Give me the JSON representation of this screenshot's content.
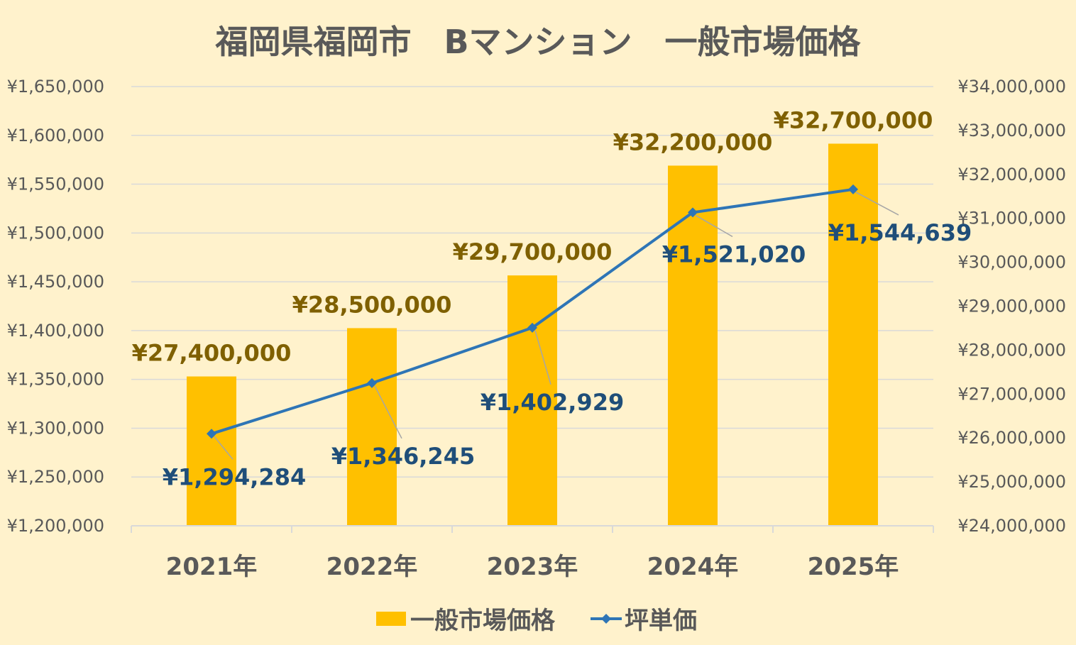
{
  "chart_data": {
    "type": "bar",
    "title": "福岡県福岡市　Bマンション　一般市場価格",
    "categories": [
      "2021年",
      "2022年",
      "2023年",
      "2024年",
      "2025年"
    ],
    "series": [
      {
        "name": "一般市場価格",
        "type": "bar",
        "axis": "right",
        "values": [
          27400000,
          28500000,
          29700000,
          32200000,
          32700000
        ],
        "labels": [
          "¥27,400,000",
          "¥28,500,000",
          "¥29,700,000",
          "¥32,200,000",
          "¥32,700,000"
        ]
      },
      {
        "name": "坪単価",
        "type": "line",
        "axis": "left",
        "values": [
          1294284,
          1346245,
          1402929,
          1521020,
          1544639
        ],
        "labels": [
          "¥1,294,284",
          "¥1,346,245",
          "¥1,402,929",
          "¥1,521,020",
          "¥1,544,639"
        ]
      }
    ],
    "y_left": {
      "min": 1200000,
      "max": 1650000,
      "step": 50000,
      "ticks": [
        "¥1,200,000",
        "¥1,250,000",
        "¥1,300,000",
        "¥1,350,000",
        "¥1,400,000",
        "¥1,450,000",
        "¥1,500,000",
        "¥1,550,000",
        "¥1,600,000",
        "¥1,650,000"
      ]
    },
    "y_right": {
      "min": 24000000,
      "max": 34000000,
      "step": 1000000,
      "ticks": [
        "¥24,000,000",
        "¥25,000,000",
        "¥26,000,000",
        "¥27,000,000",
        "¥28,000,000",
        "¥29,000,000",
        "¥30,000,000",
        "¥31,000,000",
        "¥32,000,000",
        "¥33,000,000",
        "¥34,000,000"
      ]
    },
    "grid": true,
    "legend": "bottom",
    "colors": {
      "background": "#FFF2CC",
      "bar": "#FFC000",
      "line": "#2E75B6",
      "bar_label": "#7F6000",
      "line_label": "#1F4E79",
      "axis_text": "#595959",
      "grid": "#D9D9D9"
    }
  }
}
